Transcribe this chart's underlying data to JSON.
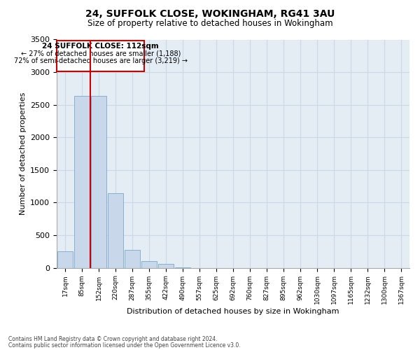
{
  "title1": "24, SUFFOLK CLOSE, WOKINGHAM, RG41 3AU",
  "title2": "Size of property relative to detached houses in Wokingham",
  "xlabel": "Distribution of detached houses by size in Wokingham",
  "ylabel": "Number of detached properties",
  "bar_labels": [
    "17sqm",
    "85sqm",
    "152sqm",
    "220sqm",
    "287sqm",
    "355sqm",
    "422sqm",
    "490sqm",
    "557sqm",
    "625sqm",
    "692sqm",
    "760sqm",
    "827sqm",
    "895sqm",
    "962sqm",
    "1030sqm",
    "1097sqm",
    "1165sqm",
    "1232sqm",
    "1300sqm",
    "1367sqm"
  ],
  "bar_values": [
    250,
    2640,
    2640,
    1140,
    270,
    100,
    55,
    5,
    0,
    0,
    0,
    0,
    0,
    0,
    0,
    0,
    0,
    0,
    0,
    0,
    0
  ],
  "bar_color": "#c8d8ea",
  "bar_edge_color": "#7aa8cc",
  "grid_color": "#ccd8e8",
  "background_color": "#e4ecf4",
  "vline_color": "#cc0000",
  "annotation_title": "24 SUFFOLK CLOSE: 112sqm",
  "annotation_line1": "← 27% of detached houses are smaller (1,188)",
  "annotation_line2": "72% of semi-detached houses are larger (3,219) →",
  "annotation_box_color": "#cc0000",
  "ylim": [
    0,
    3500
  ],
  "yticks": [
    0,
    500,
    1000,
    1500,
    2000,
    2500,
    3000,
    3500
  ],
  "footer1": "Contains HM Land Registry data © Crown copyright and database right 2024.",
  "footer2": "Contains public sector information licensed under the Open Government Licence v3.0."
}
